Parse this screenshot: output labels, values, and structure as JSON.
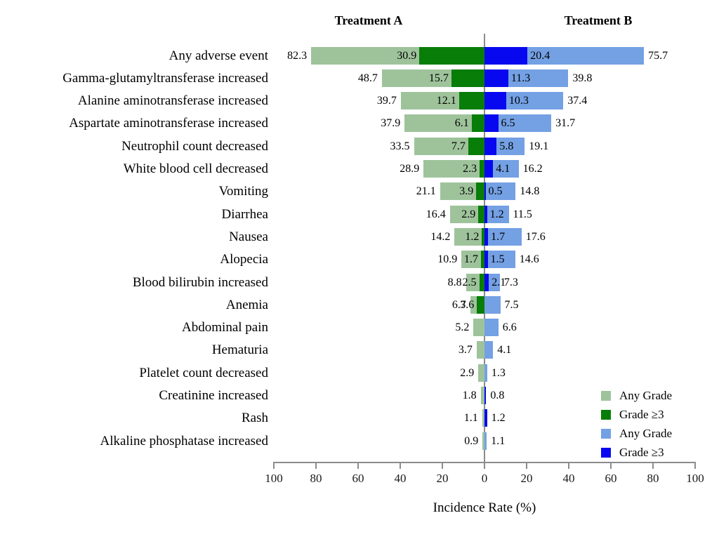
{
  "figure": {
    "treatment_a_title": "Treatment A",
    "treatment_b_title": "Treatment B",
    "xlabel": "Incidence Rate (%)"
  },
  "colors": {
    "a_any": "#9EC39B",
    "a_g3": "#087D08",
    "b_any": "#74A0E4",
    "b_g3": "#0808F0",
    "axis_gray": "#8C8C8C"
  },
  "chart_data": {
    "type": "bar",
    "subtype": "diverging-butterfly",
    "left_panel": "Treatment A",
    "right_panel": "Treatment B",
    "xlabel": "Incidence Rate (%)",
    "axis_max_pct": 100,
    "x_ticks": [
      "100",
      "80",
      "60",
      "40",
      "20",
      "0",
      "20",
      "40",
      "60",
      "80",
      "100"
    ],
    "legend_position": "bottom-right",
    "legend": [
      {
        "label": "Any Grade",
        "color_key": "a_any"
      },
      {
        "label": "Grade ≥3",
        "color_key": "a_g3"
      },
      {
        "label": "Any Grade",
        "color_key": "b_any"
      },
      {
        "label": "Grade ≥3",
        "color_key": "b_g3"
      }
    ],
    "rows": [
      {
        "label": "Any adverse event",
        "a_any": 82.3,
        "a_g3": 30.9,
        "b_any": 75.7,
        "b_g3": 20.4
      },
      {
        "label": "Gamma-glutamyltransferase increased",
        "a_any": 48.7,
        "a_g3": 15.7,
        "b_any": 39.8,
        "b_g3": 11.3
      },
      {
        "label": "Alanine aminotransferase increased",
        "a_any": 39.7,
        "a_g3": 12.1,
        "b_any": 37.4,
        "b_g3": 10.3
      },
      {
        "label": "Aspartate aminotransferase increased",
        "a_any": 37.9,
        "a_g3": 6.1,
        "b_any": 31.7,
        "b_g3": 6.5
      },
      {
        "label": "Neutrophil count decreased",
        "a_any": 33.5,
        "a_g3": 7.7,
        "b_any": 19.1,
        "b_g3": 5.8
      },
      {
        "label": "White blood cell decreased",
        "a_any": 28.9,
        "a_g3": 2.3,
        "b_any": 16.2,
        "b_g3": 4.1
      },
      {
        "label": "Vomiting",
        "a_any": 21.1,
        "a_g3": 3.9,
        "b_any": 14.8,
        "b_g3": 0.5
      },
      {
        "label": "Diarrhea",
        "a_any": 16.4,
        "a_g3": 2.9,
        "b_any": 11.5,
        "b_g3": 1.2
      },
      {
        "label": "Nausea",
        "a_any": 14.2,
        "a_g3": 1.2,
        "b_any": 17.6,
        "b_g3": 1.7
      },
      {
        "label": "Alopecia",
        "a_any": 10.9,
        "a_g3": 1.7,
        "b_any": 14.6,
        "b_g3": 1.5
      },
      {
        "label": "Blood bilirubin increased",
        "a_any": 8.8,
        "a_g3": 2.5,
        "b_any": 7.3,
        "b_g3": 2.1
      },
      {
        "label": "Anemia",
        "a_any": 6.7,
        "a_g3": 3.6,
        "b_any": 7.5,
        "b_g3": null
      },
      {
        "label": "Abdominal pain",
        "a_any": 5.2,
        "a_g3": null,
        "b_any": 6.6,
        "b_g3": null
      },
      {
        "label": "Hematuria",
        "a_any": 3.7,
        "a_g3": null,
        "b_any": 4.1,
        "b_g3": null
      },
      {
        "label": "Platelet count decreased",
        "a_any": 2.9,
        "a_g3": null,
        "b_any": 1.3,
        "b_g3": null
      },
      {
        "label": "Creatinine increased",
        "a_any": 1.8,
        "a_g3": null,
        "b_any": 0.8,
        "b_g3": 0.8,
        "b_g3_unlabeled": true
      },
      {
        "label": "Rash",
        "a_any": 1.1,
        "a_g3": null,
        "b_any": 1.2,
        "b_g3": 1.2,
        "b_g3_unlabeled": true
      },
      {
        "label": "Alkaline phosphatase increased",
        "a_any": 0.9,
        "a_g3": null,
        "b_any": 1.1,
        "b_g3": null
      }
    ]
  }
}
